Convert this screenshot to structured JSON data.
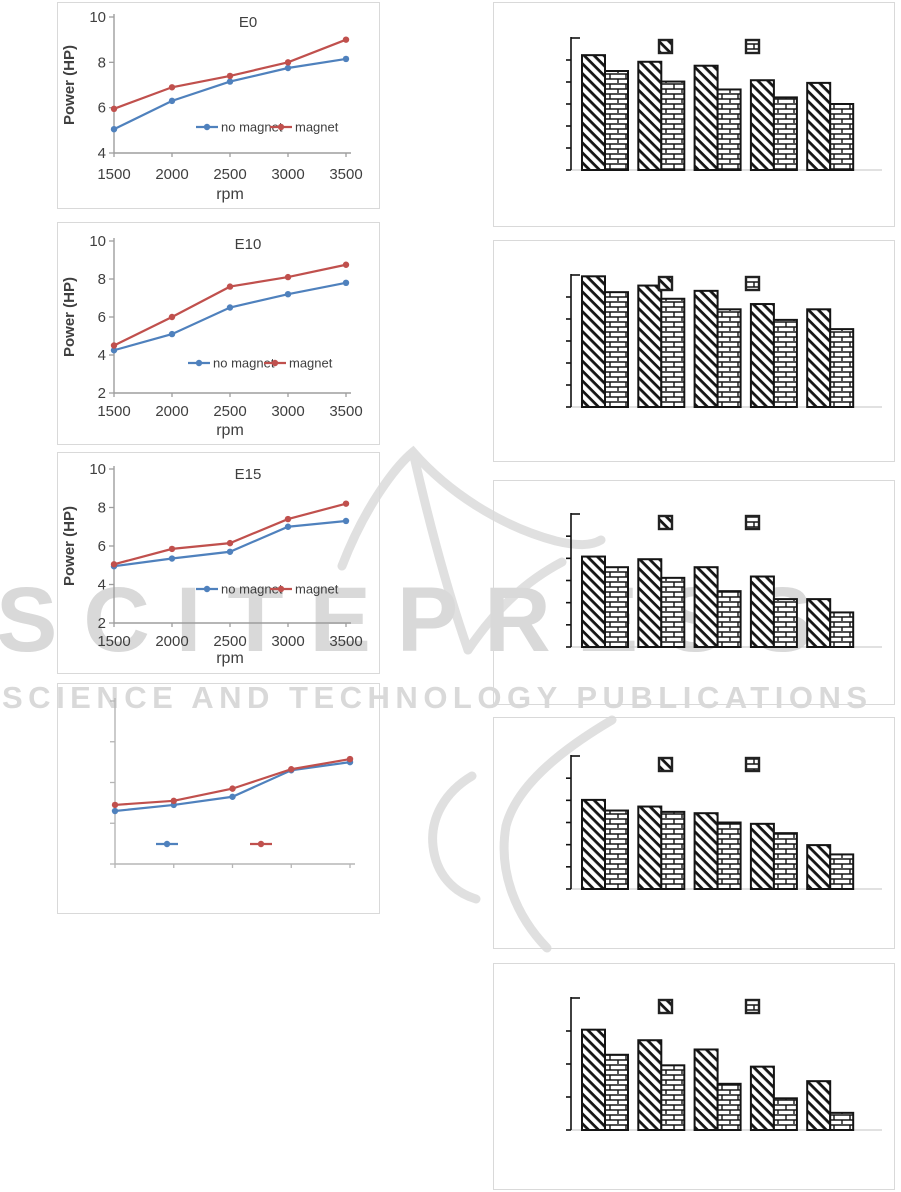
{
  "watermark": {
    "title": "SCITEPRESS",
    "subtitle": "SCIENCE AND TECHNOLOGY PUBLICATIONS"
  },
  "colors": {
    "no_magnet_blue": "#4f81bd",
    "magnet_red": "#c0504d",
    "axis_line": "#9e9e9e",
    "faded_axis_line": "#b5b5b5",
    "tick_text": "#3f3f3f",
    "box_border": "#d9d9d9",
    "bar_outline": "#141414",
    "bar_baseline": "#cfcfcf",
    "watermark_gray": "#d9d9d9"
  },
  "chart_data": [
    {
      "type": "line",
      "title": "E0",
      "ylabel": "Power (HP)",
      "xlabel": "rpm",
      "x_labels": [
        "1500",
        "2000",
        "2500",
        "3000",
        "3500"
      ],
      "ylim": [
        4,
        10
      ],
      "ytick_labels": [
        "4",
        "6",
        "8",
        "10"
      ],
      "legend_position": "inside-bottom-right",
      "series": [
        {
          "name": "no magnet",
          "color": "#4f81bd",
          "values": [
            5.05,
            6.3,
            7.15,
            7.75,
            8.15
          ]
        },
        {
          "name": "magnet",
          "color": "#c0504d",
          "values": [
            5.95,
            6.9,
            7.4,
            8.0,
            9.0
          ]
        }
      ]
    },
    {
      "type": "line",
      "title": "E10",
      "ylabel": "Power (HP)",
      "xlabel": "rpm",
      "x_labels": [
        "1500",
        "2000",
        "2500",
        "3000",
        "3500"
      ],
      "ylim": [
        2,
        10
      ],
      "ytick_labels": [
        "2",
        "4",
        "6",
        "8",
        "10"
      ],
      "legend_position": "inside-bottom-right",
      "series": [
        {
          "name": "no magnet",
          "color": "#4f81bd",
          "values": [
            4.25,
            5.1,
            6.5,
            7.2,
            7.8
          ]
        },
        {
          "name": "magnet",
          "color": "#c0504d",
          "values": [
            4.5,
            6.0,
            7.6,
            8.1,
            8.75
          ]
        }
      ]
    },
    {
      "type": "line",
      "title": "E15",
      "ylabel": "Power (HP)",
      "xlabel": "rpm",
      "x_labels": [
        "1500",
        "2000",
        "2500",
        "3000",
        "3500"
      ],
      "ylim": [
        2,
        10
      ],
      "ytick_labels": [
        "2",
        "4",
        "6",
        "8",
        "10"
      ],
      "legend_position": "inside-bottom-right",
      "series": [
        {
          "name": "no magnet",
          "color": "#4f81bd",
          "values": [
            4.95,
            5.35,
            5.7,
            7.0,
            7.3
          ]
        },
        {
          "name": "magnet",
          "color": "#c0504d",
          "values": [
            5.05,
            5.85,
            6.15,
            7.4,
            8.2
          ]
        }
      ]
    },
    {
      "type": "line",
      "title": "",
      "ylabel": "",
      "xlabel": "",
      "x_labels": [],
      "x_count": 5,
      "ylim": [
        2,
        10
      ],
      "ytick_labels": [],
      "ytick_count": 5,
      "labels_visible": false,
      "legend_position": "inside-bottom",
      "series": [
        {
          "name": "",
          "color": "#4f81bd",
          "values": [
            4.6,
            4.9,
            5.3,
            6.6,
            7.0
          ]
        },
        {
          "name": "",
          "color": "#c0504d",
          "values": [
            4.9,
            5.1,
            5.7,
            6.65,
            7.15
          ]
        }
      ]
    },
    {
      "type": "bar",
      "group_count": 5,
      "ytick_count": 7,
      "axis_labels_visible": false,
      "legend_patterns": [
        "diagonal-hatch",
        "brick"
      ],
      "series": [
        {
          "name": "",
          "pattern": "diagonal-hatch",
          "values_pct_of_axis": [
            87,
            82,
            79,
            68,
            66
          ]
        },
        {
          "name": "",
          "pattern": "brick",
          "values_pct_of_axis": [
            75,
            67,
            61,
            55,
            50
          ]
        }
      ]
    },
    {
      "type": "bar",
      "group_count": 5,
      "ytick_count": 7,
      "axis_labels_visible": false,
      "legend_patterns": [
        "diagonal-hatch",
        "brick"
      ],
      "series": [
        {
          "name": "",
          "pattern": "diagonal-hatch",
          "values_pct_of_axis": [
            99,
            92,
            88,
            78,
            74
          ]
        },
        {
          "name": "",
          "pattern": "brick",
          "values_pct_of_axis": [
            87,
            82,
            74,
            66,
            59
          ]
        }
      ]
    },
    {
      "type": "bar",
      "group_count": 5,
      "ytick_count": 7,
      "axis_labels_visible": false,
      "legend_patterns": [
        "diagonal-hatch",
        "brick"
      ],
      "series": [
        {
          "name": "",
          "pattern": "diagonal-hatch",
          "values_pct_of_axis": [
            68,
            66,
            60,
            53,
            36
          ]
        },
        {
          "name": "",
          "pattern": "brick",
          "values_pct_of_axis": [
            60,
            52,
            42,
            36,
            26
          ]
        }
      ]
    },
    {
      "type": "bar",
      "group_count": 5,
      "ytick_count": 7,
      "axis_labels_visible": false,
      "legend_patterns": [
        "diagonal-hatch",
        "brick"
      ],
      "series": [
        {
          "name": "",
          "pattern": "diagonal-hatch",
          "values_pct_of_axis": [
            67,
            62,
            57,
            49,
            33
          ]
        },
        {
          "name": "",
          "pattern": "brick",
          "values_pct_of_axis": [
            59,
            58,
            50,
            42,
            26
          ]
        }
      ]
    },
    {
      "type": "bar",
      "group_count": 5,
      "ytick_count": 5,
      "axis_labels_visible": false,
      "legend_patterns": [
        "diagonal-hatch",
        "brick"
      ],
      "series": [
        {
          "name": "",
          "pattern": "diagonal-hatch",
          "values_pct_of_axis": [
            76,
            68,
            61,
            48,
            37
          ]
        },
        {
          "name": "",
          "pattern": "brick",
          "values_pct_of_axis": [
            57,
            49,
            35,
            24,
            13
          ]
        }
      ]
    }
  ]
}
